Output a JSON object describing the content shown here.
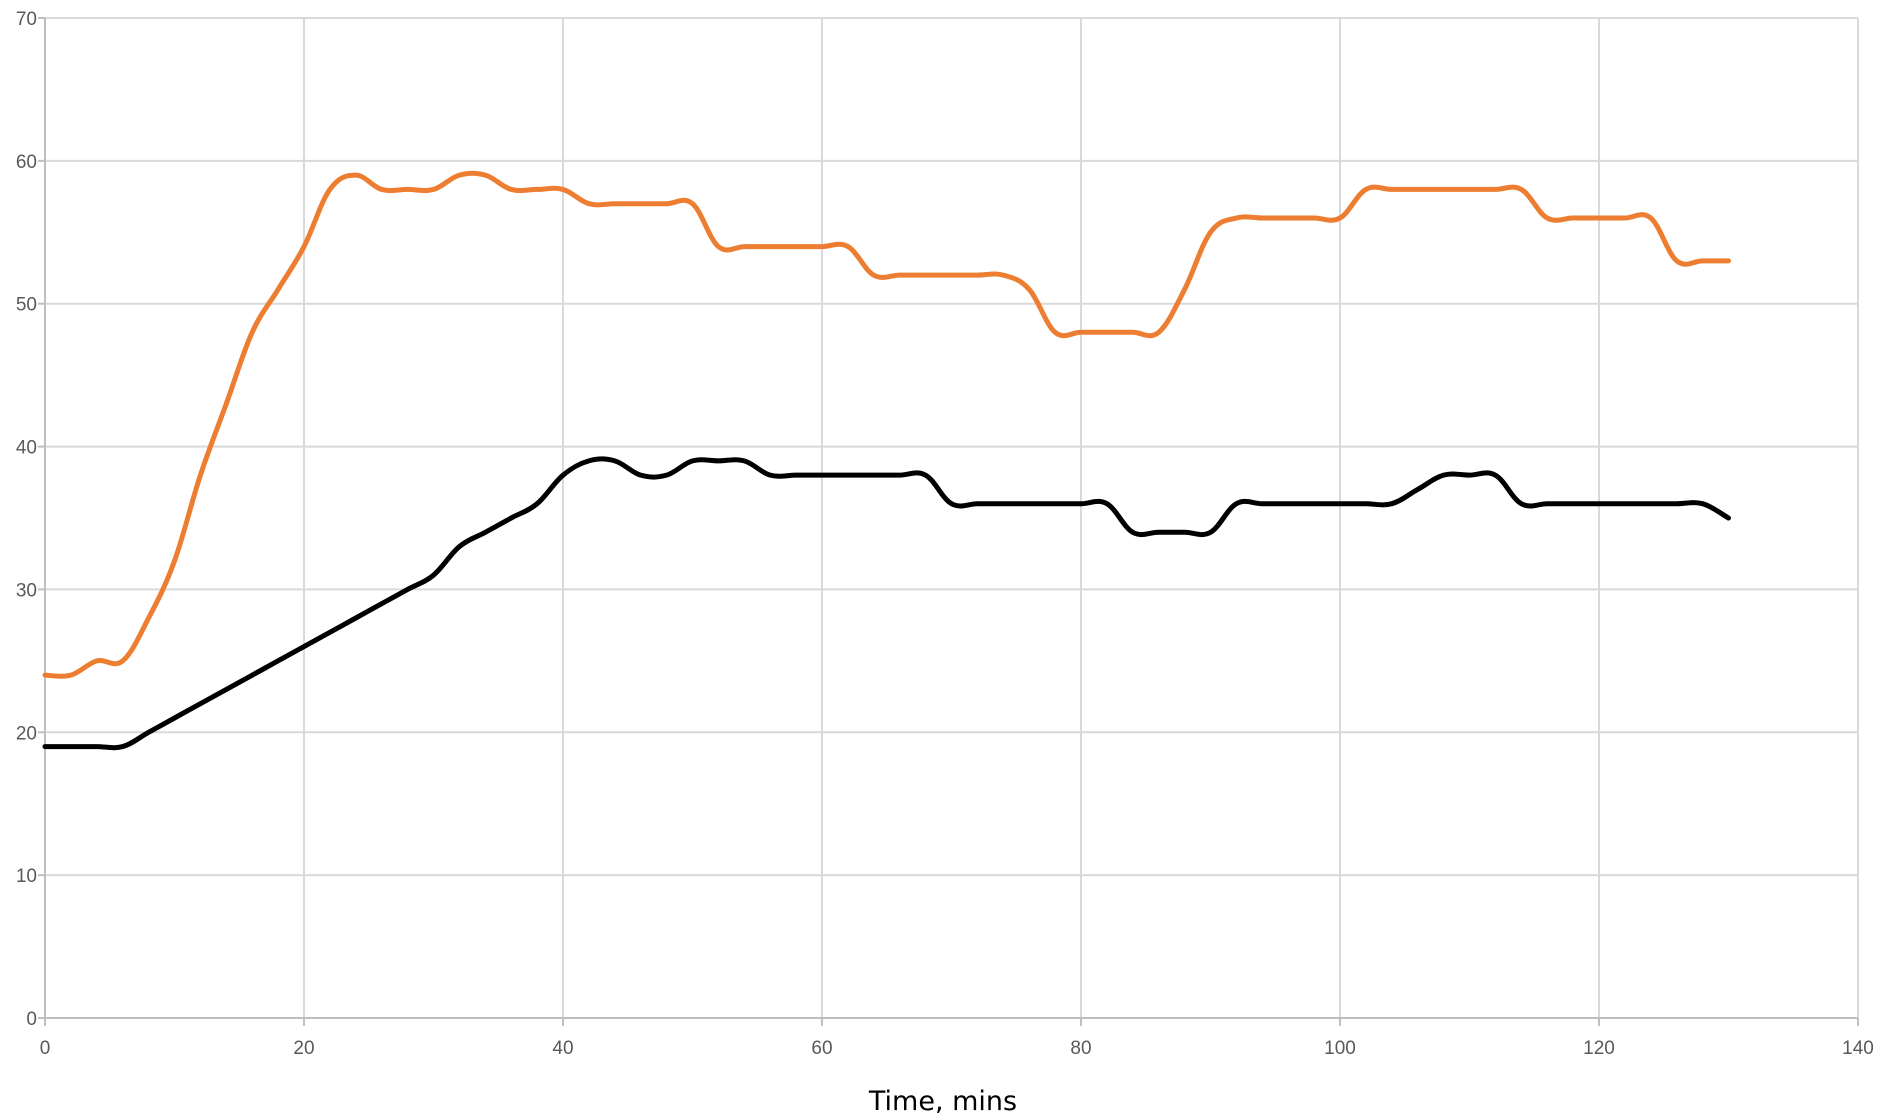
{
  "chart_data": {
    "type": "line",
    "title": "",
    "xlabel": "Time, mins",
    "ylabel": "",
    "xlim": [
      0,
      140
    ],
    "ylim": [
      0,
      70
    ],
    "x_ticks": [
      0,
      20,
      40,
      60,
      80,
      100,
      120,
      140
    ],
    "y_ticks": [
      0,
      10,
      20,
      30,
      40,
      50,
      60,
      70
    ],
    "grid": true,
    "legend": "none",
    "series": [
      {
        "color": "#ED7D31",
        "x": [
          0,
          2,
          4,
          6,
          8,
          10,
          12,
          14,
          16,
          18,
          20,
          22,
          24,
          26,
          28,
          30,
          32,
          34,
          36,
          38,
          40,
          42,
          44,
          46,
          48,
          50,
          52,
          54,
          56,
          58,
          60,
          62,
          64,
          66,
          68,
          70,
          72,
          74,
          76,
          78,
          80,
          82,
          84,
          86,
          88,
          90,
          92,
          94,
          96,
          98,
          100,
          102,
          104,
          106,
          108,
          110,
          112,
          114,
          116,
          118,
          120,
          122,
          124,
          126,
          128,
          130
        ],
        "y": [
          24,
          24,
          25,
          25,
          28,
          32,
          38,
          43,
          48,
          51,
          54,
          58,
          59,
          58,
          58,
          58,
          59,
          59,
          58,
          58,
          58,
          57,
          57,
          57,
          57,
          57,
          54,
          54,
          54,
          54,
          54,
          54,
          52,
          52,
          52,
          52,
          52,
          52,
          51,
          48,
          48,
          48,
          48,
          48,
          51,
          55,
          56,
          56,
          56,
          56,
          56,
          58,
          58,
          58,
          58,
          58,
          58,
          58,
          56,
          56,
          56,
          56,
          56,
          53,
          53,
          53
        ]
      },
      {
        "color": "#000000",
        "x": [
          0,
          2,
          4,
          6,
          8,
          10,
          12,
          14,
          16,
          18,
          20,
          22,
          24,
          26,
          28,
          30,
          32,
          34,
          36,
          38,
          40,
          42,
          44,
          46,
          48,
          50,
          52,
          54,
          56,
          58,
          60,
          62,
          64,
          66,
          68,
          70,
          72,
          74,
          76,
          78,
          80,
          82,
          84,
          86,
          88,
          90,
          92,
          94,
          96,
          98,
          100,
          102,
          104,
          106,
          108,
          110,
          112,
          114,
          116,
          118,
          120,
          122,
          124,
          126,
          128,
          130
        ],
        "y": [
          19,
          19,
          19,
          19,
          20,
          21,
          22,
          23,
          24,
          25,
          26,
          27,
          28,
          29,
          30,
          31,
          33,
          34,
          35,
          36,
          38,
          39,
          39,
          38,
          38,
          39,
          39,
          39,
          38,
          38,
          38,
          38,
          38,
          38,
          38,
          36,
          36,
          36,
          36,
          36,
          36,
          36,
          34,
          34,
          34,
          34,
          36,
          36,
          36,
          36,
          36,
          36,
          36,
          37,
          38,
          38,
          38,
          36,
          36,
          36,
          36,
          36,
          36,
          36,
          36,
          35
        ]
      }
    ]
  }
}
